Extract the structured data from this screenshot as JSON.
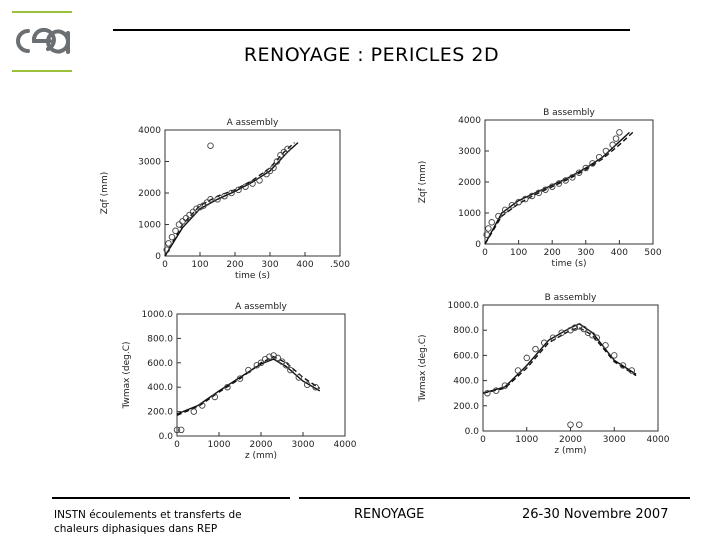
{
  "header": {
    "title": "RENOYAGE : PERICLES 2D",
    "logo_color": "#9cc03a"
  },
  "footer": {
    "left_line1": "INSTN écoulements et transferts de",
    "left_line2": "chaleurs diphasiques dans REP",
    "center": "RENOYAGE",
    "right": "26-30 Novembre 2007"
  },
  "chart_data": [
    {
      "type": "scatter",
      "title": "A assembly",
      "xlabel": "time (s)",
      "ylabel": "Zqf (mm)",
      "xlim": [
        0,
        500
      ],
      "ylim": [
        0,
        4000
      ],
      "xticks": [
        "0",
        "100",
        "200",
        "300",
        "400",
        ".500"
      ],
      "yticks": [
        "0",
        "1000",
        "2000",
        "3000",
        "4000"
      ],
      "points": [
        [
          5,
          200
        ],
        [
          10,
          400
        ],
        [
          20,
          600
        ],
        [
          30,
          800
        ],
        [
          40,
          1000
        ],
        [
          50,
          1100
        ],
        [
          60,
          1200
        ],
        [
          70,
          1300
        ],
        [
          80,
          1400
        ],
        [
          90,
          1500
        ],
        [
          100,
          1550
        ],
        [
          110,
          1600
        ],
        [
          120,
          1700
        ],
        [
          130,
          1800
        ],
        [
          150,
          1800
        ],
        [
          170,
          1900
        ],
        [
          190,
          2000
        ],
        [
          210,
          2100
        ],
        [
          230,
          2200
        ],
        [
          250,
          2300
        ],
        [
          270,
          2400
        ],
        [
          290,
          2600
        ],
        [
          300,
          2700
        ],
        [
          310,
          2800
        ],
        [
          320,
          3000
        ],
        [
          330,
          3200
        ],
        [
          340,
          3300
        ],
        [
          350,
          3400
        ],
        [
          130,
          3500
        ]
      ],
      "series": [
        {
          "name": "",
          "x": [
            0,
            50,
            100,
            150,
            200,
            250,
            300,
            350,
            380
          ],
          "y": [
            0,
            900,
            1500,
            1800,
            2050,
            2350,
            2700,
            3300,
            3600
          ]
        },
        {
          "name": "",
          "x": [
            0,
            50,
            100,
            150,
            200,
            250,
            300,
            340,
            370
          ],
          "y": [
            0,
            1000,
            1600,
            1900,
            2100,
            2400,
            2800,
            3300,
            3600
          ]
        }
      ]
    },
    {
      "type": "scatter",
      "title": "B assembly",
      "xlabel": "time (s)",
      "ylabel": "Zqf (mm)",
      "xlim": [
        0,
        500
      ],
      "ylim": [
        0,
        4000
      ],
      "xticks": [
        "0",
        "100",
        "200",
        "300",
        "400",
        "500"
      ],
      "yticks": [
        "0",
        "1000",
        "2000",
        "3000",
        "4000"
      ],
      "points": [
        [
          5,
          300
        ],
        [
          10,
          500
        ],
        [
          20,
          700
        ],
        [
          40,
          900
        ],
        [
          60,
          1100
        ],
        [
          80,
          1250
        ],
        [
          100,
          1350
        ],
        [
          120,
          1450
        ],
        [
          140,
          1550
        ],
        [
          160,
          1650
        ],
        [
          180,
          1750
        ],
        [
          200,
          1850
        ],
        [
          220,
          1950
        ],
        [
          240,
          2050
        ],
        [
          260,
          2150
        ],
        [
          280,
          2300
        ],
        [
          300,
          2450
        ],
        [
          320,
          2600
        ],
        [
          340,
          2800
        ],
        [
          360,
          3000
        ],
        [
          380,
          3200
        ],
        [
          390,
          3400
        ],
        [
          400,
          3600
        ]
      ],
      "series": [
        {
          "name": "",
          "x": [
            0,
            50,
            100,
            150,
            200,
            250,
            300,
            350,
            400,
            430
          ],
          "y": [
            0,
            1000,
            1400,
            1650,
            1900,
            2150,
            2450,
            2800,
            3300,
            3600
          ]
        },
        {
          "name": "",
          "x": [
            0,
            50,
            100,
            150,
            200,
            250,
            300,
            350,
            400,
            440
          ],
          "y": [
            0,
            900,
            1300,
            1600,
            1850,
            2100,
            2400,
            2750,
            3200,
            3600
          ]
        }
      ]
    },
    {
      "type": "scatter",
      "title": "A assembly",
      "xlabel": "z (mm)",
      "ylabel": "Twmax (deg.C)",
      "xlim": [
        0,
        4000
      ],
      "ylim": [
        0,
        1000
      ],
      "xticks": [
        "0",
        "1000",
        "2000",
        "3000",
        "4000"
      ],
      "yticks": [
        "0.0",
        "200.0",
        "400.0",
        "600.0",
        "800.0",
        "1000.0"
      ],
      "points": [
        [
          0,
          50
        ],
        [
          100,
          50
        ],
        [
          400,
          200
        ],
        [
          600,
          250
        ],
        [
          900,
          320
        ],
        [
          1200,
          400
        ],
        [
          1500,
          470
        ],
        [
          1700,
          540
        ],
        [
          1900,
          580
        ],
        [
          2000,
          600
        ],
        [
          2100,
          630
        ],
        [
          2200,
          650
        ],
        [
          2300,
          660
        ],
        [
          2400,
          640
        ],
        [
          2500,
          610
        ],
        [
          2600,
          580
        ],
        [
          2700,
          540
        ],
        [
          2900,
          480
        ],
        [
          3100,
          420
        ],
        [
          3300,
          400
        ]
      ],
      "series": [
        {
          "name": "",
          "x": [
            0,
            500,
            1000,
            1500,
            2000,
            2300,
            2600,
            3000,
            3400
          ],
          "y": [
            180,
            250,
            370,
            480,
            590,
            630,
            570,
            450,
            370
          ]
        },
        {
          "name": "",
          "x": [
            0,
            500,
            1000,
            1500,
            2000,
            2300,
            2600,
            3000,
            3400
          ],
          "y": [
            170,
            240,
            360,
            470,
            600,
            650,
            600,
            480,
            390
          ]
        }
      ]
    },
    {
      "type": "scatter",
      "title": "B assembly",
      "xlabel": "z (mm)",
      "ylabel": "Twmax (deg.C)",
      "xlim": [
        0,
        4000
      ],
      "ylim": [
        0,
        1000
      ],
      "xticks": [
        "0",
        "1000",
        "2000",
        "3000",
        "4000"
      ],
      "yticks": [
        "0.0",
        "200.0",
        "400.0",
        "600.0",
        "800.0",
        "1000.0"
      ],
      "points": [
        [
          100,
          300
        ],
        [
          300,
          320
        ],
        [
          500,
          360
        ],
        [
          800,
          480
        ],
        [
          1000,
          580
        ],
        [
          1200,
          650
        ],
        [
          1400,
          700
        ],
        [
          1600,
          740
        ],
        [
          1800,
          780
        ],
        [
          2000,
          800
        ],
        [
          2100,
          820
        ],
        [
          2200,
          830
        ],
        [
          2300,
          810
        ],
        [
          2400,
          780
        ],
        [
          2500,
          760
        ],
        [
          2600,
          740
        ],
        [
          2800,
          680
        ],
        [
          3000,
          600
        ],
        [
          3200,
          520
        ],
        [
          3400,
          480
        ],
        [
          2000,
          50
        ],
        [
          2200,
          50
        ]
      ],
      "series": [
        {
          "name": "",
          "x": [
            0,
            500,
            1000,
            1500,
            2000,
            2200,
            2500,
            3000,
            3500
          ],
          "y": [
            300,
            350,
            520,
            720,
            820,
            850,
            780,
            560,
            450
          ]
        },
        {
          "name": "",
          "x": [
            0,
            500,
            1000,
            1500,
            2000,
            2200,
            2500,
            3000,
            3500
          ],
          "y": [
            300,
            340,
            500,
            700,
            800,
            820,
            760,
            550,
            440
          ]
        }
      ]
    }
  ]
}
